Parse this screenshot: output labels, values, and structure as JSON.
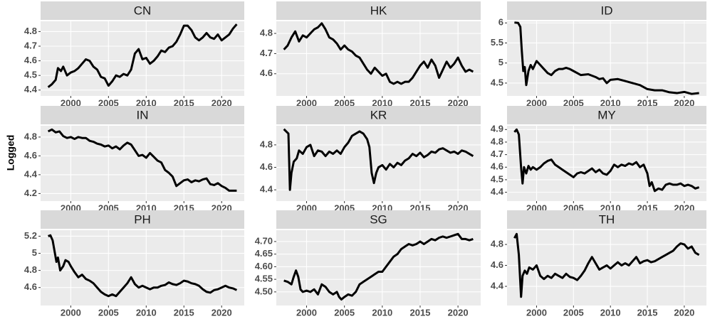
{
  "y_axis_label": "Logged",
  "chart_data": [
    {
      "type": "line",
      "title": "CN",
      "color": "#000000",
      "grid": true,
      "xlim": [
        1996,
        2023
      ],
      "ylim": [
        4.36,
        4.87
      ],
      "xticks": [
        2000,
        2005,
        2010,
        2015,
        2020
      ],
      "yticks": [
        4.4,
        4.5,
        4.6,
        4.7,
        4.8
      ],
      "x": [
        1997,
        1997.5,
        1998,
        1998.3,
        1998.7,
        1999,
        1999.5,
        2000,
        2000.5,
        2001,
        2001.5,
        2002,
        2002.5,
        2003,
        2003.5,
        2004,
        2004.5,
        2005,
        2005.5,
        2006,
        2006.5,
        2007,
        2007.5,
        2008,
        2008.5,
        2009,
        2009.5,
        2010,
        2010.5,
        2011,
        2011.5,
        2012,
        2012.5,
        2013,
        2013.5,
        2014,
        2014.5,
        2015,
        2015.5,
        2016,
        2016.5,
        2017,
        2017.5,
        2018,
        2018.5,
        2019,
        2019.5,
        2020,
        2020.5,
        2021,
        2021.5,
        2022
      ],
      "values": [
        4.42,
        4.44,
        4.47,
        4.55,
        4.53,
        4.56,
        4.5,
        4.52,
        4.53,
        4.55,
        4.58,
        4.61,
        4.6,
        4.56,
        4.54,
        4.49,
        4.48,
        4.43,
        4.46,
        4.5,
        4.49,
        4.51,
        4.5,
        4.54,
        4.65,
        4.68,
        4.61,
        4.62,
        4.58,
        4.6,
        4.63,
        4.67,
        4.66,
        4.69,
        4.7,
        4.73,
        4.78,
        4.84,
        4.84,
        4.81,
        4.76,
        4.74,
        4.76,
        4.79,
        4.76,
        4.75,
        4.78,
        4.74,
        4.76,
        4.78,
        4.82,
        4.85
      ]
    },
    {
      "type": "line",
      "title": "HK",
      "color": "#000000",
      "grid": true,
      "xlim": [
        1996,
        2023
      ],
      "ylim": [
        4.49,
        4.86
      ],
      "xticks": [
        2000,
        2005,
        2010,
        2015,
        2020
      ],
      "yticks": [
        4.6,
        4.7,
        4.8
      ],
      "x": [
        1997,
        1997.5,
        1998,
        1998.5,
        1999,
        1999.5,
        2000,
        2000.5,
        2001,
        2001.5,
        2002,
        2002.5,
        2003,
        2003.5,
        2004,
        2004.5,
        2005,
        2005.5,
        2006,
        2006.5,
        2007,
        2007.5,
        2008,
        2008.5,
        2009,
        2009.5,
        2010,
        2010.5,
        2011,
        2011.5,
        2012,
        2012.5,
        2013,
        2013.5,
        2014,
        2014.5,
        2015,
        2015.5,
        2016,
        2016.5,
        2017,
        2017.5,
        2018,
        2018.5,
        2019,
        2019.5,
        2020,
        2020.5,
        2021,
        2021.5,
        2022
      ],
      "values": [
        4.72,
        4.74,
        4.78,
        4.81,
        4.76,
        4.79,
        4.78,
        4.8,
        4.82,
        4.83,
        4.85,
        4.82,
        4.78,
        4.77,
        4.75,
        4.72,
        4.74,
        4.72,
        4.71,
        4.69,
        4.68,
        4.65,
        4.62,
        4.6,
        4.63,
        4.61,
        4.59,
        4.6,
        4.56,
        4.55,
        4.56,
        4.55,
        4.56,
        4.56,
        4.58,
        4.61,
        4.64,
        4.66,
        4.63,
        4.67,
        4.64,
        4.58,
        4.62,
        4.66,
        4.63,
        4.65,
        4.68,
        4.64,
        4.61,
        4.62,
        4.61
      ]
    },
    {
      "type": "line",
      "title": "ID",
      "color": "#000000",
      "grid": true,
      "xlim": [
        1996,
        2023
      ],
      "ylim": [
        4.18,
        6.04
      ],
      "xticks": [
        2000,
        2005,
        2010,
        2015,
        2020
      ],
      "yticks": [
        4.5,
        5.0,
        5.5,
        6.0
      ],
      "x": [
        1997,
        1997.5,
        1997.8,
        1998,
        1998.2,
        1998.4,
        1998.6,
        1998.9,
        1999.2,
        1999.5,
        2000,
        2000.5,
        2001,
        2001.5,
        2002,
        2002.5,
        2003,
        2003.5,
        2004,
        2004.5,
        2005,
        2005.5,
        2006,
        2007,
        2008,
        2008.5,
        2009,
        2009.5,
        2010,
        2011,
        2012,
        2013,
        2014,
        2015,
        2016,
        2017,
        2018,
        2019,
        2020,
        2021,
        2022
      ],
      "values": [
        6.01,
        6.0,
        5.9,
        5.3,
        4.8,
        4.9,
        4.45,
        4.8,
        4.95,
        4.85,
        5.05,
        4.95,
        4.85,
        4.75,
        4.7,
        4.8,
        4.85,
        4.85,
        4.88,
        4.85,
        4.8,
        4.75,
        4.7,
        4.72,
        4.65,
        4.6,
        4.62,
        4.5,
        4.58,
        4.6,
        4.55,
        4.5,
        4.45,
        4.35,
        4.32,
        4.32,
        4.27,
        4.25,
        4.28,
        4.23,
        4.25
      ]
    },
    {
      "type": "line",
      "title": "IN",
      "color": "#000000",
      "grid": true,
      "xlim": [
        1996,
        2023
      ],
      "ylim": [
        4.12,
        4.92
      ],
      "xticks": [
        2000,
        2005,
        2010,
        2015,
        2020
      ],
      "yticks": [
        4.2,
        4.4,
        4.6,
        4.8
      ],
      "x": [
        1997,
        1997.5,
        1998,
        1998.5,
        1999,
        1999.5,
        2000,
        2000.5,
        2001,
        2001.5,
        2002,
        2002.5,
        2003,
        2003.5,
        2004,
        2004.5,
        2005,
        2005.5,
        2006,
        2006.5,
        2007,
        2007.5,
        2008,
        2008.5,
        2009,
        2009.5,
        2010,
        2010.5,
        2011,
        2011.5,
        2012,
        2012.5,
        2013,
        2013.5,
        2014,
        2014.5,
        2015,
        2015.5,
        2016,
        2016.5,
        2017,
        2017.5,
        2018,
        2018.5,
        2019,
        2019.5,
        2020,
        2020.5,
        2021,
        2021.5,
        2022
      ],
      "values": [
        4.86,
        4.88,
        4.85,
        4.86,
        4.81,
        4.79,
        4.8,
        4.78,
        4.8,
        4.79,
        4.79,
        4.76,
        4.75,
        4.73,
        4.72,
        4.7,
        4.71,
        4.68,
        4.7,
        4.67,
        4.71,
        4.74,
        4.72,
        4.66,
        4.6,
        4.61,
        4.58,
        4.63,
        4.59,
        4.55,
        4.53,
        4.45,
        4.42,
        4.38,
        4.28,
        4.31,
        4.34,
        4.35,
        4.32,
        4.34,
        4.33,
        4.35,
        4.36,
        4.3,
        4.29,
        4.31,
        4.28,
        4.26,
        4.23,
        4.23,
        4.23
      ]
    },
    {
      "type": "line",
      "title": "KR",
      "color": "#000000",
      "grid": true,
      "xlim": [
        1996,
        2023
      ],
      "ylim": [
        4.3,
        4.97
      ],
      "xticks": [
        2000,
        2005,
        2010,
        2015,
        2020
      ],
      "yticks": [
        4.4,
        4.6,
        4.8
      ],
      "x": [
        1997,
        1997.3,
        1997.6,
        1997.8,
        1998,
        1998.3,
        1998.7,
        1999,
        1999.5,
        2000,
        2000.5,
        2001,
        2001.5,
        2002,
        2002.5,
        2003,
        2003.5,
        2004,
        2004.5,
        2005,
        2005.5,
        2006,
        2006.5,
        2007,
        2007.5,
        2008,
        2008.3,
        2008.6,
        2008.9,
        2009.2,
        2009.5,
        2010,
        2010.5,
        2011,
        2011.5,
        2012,
        2012.5,
        2013,
        2013.5,
        2014,
        2014.5,
        2015,
        2015.5,
        2016,
        2016.5,
        2017,
        2017.5,
        2018,
        2018.5,
        2019,
        2019.5,
        2020,
        2020.5,
        2021,
        2021.5,
        2022
      ],
      "values": [
        4.94,
        4.92,
        4.9,
        4.4,
        4.55,
        4.65,
        4.68,
        4.75,
        4.72,
        4.78,
        4.8,
        4.7,
        4.75,
        4.74,
        4.7,
        4.74,
        4.72,
        4.75,
        4.72,
        4.78,
        4.82,
        4.88,
        4.9,
        4.92,
        4.9,
        4.85,
        4.78,
        4.55,
        4.46,
        4.55,
        4.6,
        4.62,
        4.58,
        4.63,
        4.6,
        4.64,
        4.62,
        4.66,
        4.68,
        4.72,
        4.7,
        4.73,
        4.69,
        4.71,
        4.74,
        4.73,
        4.76,
        4.77,
        4.75,
        4.73,
        4.74,
        4.72,
        4.75,
        4.74,
        4.72,
        4.7
      ]
    },
    {
      "type": "line",
      "title": "MY",
      "color": "#000000",
      "grid": true,
      "xlim": [
        1996,
        2023
      ],
      "ylim": [
        4.33,
        4.93
      ],
      "xticks": [
        2000,
        2005,
        2010,
        2015,
        2020
      ],
      "yticks": [
        4.4,
        4.5,
        4.6,
        4.7,
        4.8,
        4.9
      ],
      "x": [
        1997,
        1997.3,
        1997.6,
        1997.9,
        1998.1,
        1998.3,
        1998.6,
        1998.9,
        1999.2,
        1999.5,
        2000,
        2000.5,
        2001,
        2001.5,
        2002,
        2002.5,
        2003,
        2003.5,
        2004,
        2004.5,
        2005,
        2005.5,
        2006,
        2006.5,
        2007,
        2007.5,
        2008,
        2008.5,
        2009,
        2009.5,
        2010,
        2010.5,
        2011,
        2011.5,
        2012,
        2012.5,
        2013,
        2013.5,
        2014,
        2014.5,
        2015,
        2015.3,
        2015.6,
        2016,
        2016.5,
        2017,
        2017.5,
        2018,
        2018.5,
        2019,
        2019.5,
        2020,
        2020.5,
        2021,
        2021.5,
        2022
      ],
      "values": [
        4.88,
        4.9,
        4.86,
        4.6,
        4.47,
        4.6,
        4.55,
        4.61,
        4.58,
        4.6,
        4.58,
        4.6,
        4.63,
        4.65,
        4.66,
        4.62,
        4.6,
        4.58,
        4.56,
        4.54,
        4.52,
        4.55,
        4.56,
        4.55,
        4.57,
        4.59,
        4.56,
        4.58,
        4.55,
        4.54,
        4.57,
        4.62,
        4.6,
        4.62,
        4.61,
        4.63,
        4.62,
        4.64,
        4.6,
        4.62,
        4.55,
        4.45,
        4.48,
        4.41,
        4.43,
        4.42,
        4.46,
        4.47,
        4.46,
        4.46,
        4.47,
        4.45,
        4.46,
        4.45,
        4.43,
        4.44
      ]
    },
    {
      "type": "line",
      "title": "PH",
      "color": "#000000",
      "grid": true,
      "xlim": [
        1996,
        2023
      ],
      "ylim": [
        4.39,
        5.27
      ],
      "xticks": [
        2000,
        2005,
        2010,
        2015,
        2020
      ],
      "yticks": [
        4.6,
        4.8,
        5.0,
        5.2
      ],
      "x": [
        1997,
        1997.3,
        1997.6,
        1997.9,
        1998.1,
        1998.3,
        1998.6,
        1999,
        1999.3,
        1999.7,
        2000,
        2000.5,
        2001,
        2001.5,
        2002,
        2002.5,
        2003,
        2003.5,
        2004,
        2004.5,
        2005,
        2005.5,
        2006,
        2006.5,
        2007,
        2007.5,
        2008,
        2008.5,
        2009,
        2009.5,
        2010,
        2010.5,
        2011,
        2011.5,
        2012,
        2012.5,
        2013,
        2013.5,
        2014,
        2014.5,
        2015,
        2015.5,
        2016,
        2016.5,
        2017,
        2017.5,
        2018,
        2018.5,
        2019,
        2019.5,
        2020,
        2020.5,
        2021,
        2021.5,
        2022
      ],
      "values": [
        5.2,
        5.21,
        5.15,
        5.0,
        4.9,
        4.95,
        4.8,
        4.85,
        4.92,
        4.9,
        4.85,
        4.78,
        4.72,
        4.75,
        4.7,
        4.68,
        4.65,
        4.6,
        4.55,
        4.52,
        4.5,
        4.52,
        4.5,
        4.55,
        4.6,
        4.65,
        4.72,
        4.64,
        4.6,
        4.62,
        4.6,
        4.58,
        4.6,
        4.6,
        4.62,
        4.63,
        4.66,
        4.64,
        4.63,
        4.65,
        4.68,
        4.67,
        4.65,
        4.64,
        4.62,
        4.58,
        4.55,
        4.54,
        4.57,
        4.58,
        4.6,
        4.62,
        4.6,
        4.59,
        4.57
      ]
    },
    {
      "type": "line",
      "title": "SG",
      "color": "#000000",
      "grid": true,
      "xlim": [
        1996,
        2023
      ],
      "ylim": [
        4.446,
        4.745
      ],
      "xticks": [
        2000,
        2005,
        2010,
        2015,
        2020
      ],
      "yticks": [
        {
          "value": 4.5,
          "label": "4.50"
        },
        4.55,
        {
          "value": 4.6,
          "label": "4.60"
        },
        4.65,
        {
          "value": 4.7,
          "label": "4.70"
        }
      ],
      "x": [
        1997,
        1997.5,
        1998,
        1998.3,
        1998.6,
        1998.9,
        1999.2,
        1999.5,
        2000,
        2000.5,
        2001,
        2001.5,
        2002,
        2002.5,
        2003,
        2003.5,
        2004,
        2004.3,
        2004.6,
        2005,
        2005.5,
        2006,
        2006.5,
        2007,
        2007.5,
        2008,
        2008.5,
        2009,
        2009.5,
        2010,
        2010.5,
        2011,
        2011.5,
        2012,
        2012.5,
        2013,
        2013.5,
        2014,
        2014.5,
        2015,
        2015.5,
        2016,
        2016.5,
        2017,
        2017.5,
        2018,
        2018.5,
        2019,
        2019.5,
        2020,
        2020.5,
        2021,
        2021.5,
        2022
      ],
      "values": [
        4.545,
        4.54,
        4.53,
        4.56,
        4.585,
        4.56,
        4.51,
        4.5,
        4.505,
        4.5,
        4.51,
        4.49,
        4.53,
        4.52,
        4.5,
        4.49,
        4.5,
        4.48,
        4.47,
        4.48,
        4.49,
        4.485,
        4.5,
        4.53,
        4.54,
        4.55,
        4.56,
        4.57,
        4.58,
        4.58,
        4.6,
        4.62,
        4.64,
        4.65,
        4.67,
        4.68,
        4.69,
        4.685,
        4.69,
        4.7,
        4.69,
        4.7,
        4.71,
        4.705,
        4.715,
        4.72,
        4.715,
        4.72,
        4.725,
        4.73,
        4.71,
        4.71,
        4.705,
        4.71
      ]
    },
    {
      "type": "line",
      "title": "TH",
      "color": "#000000",
      "grid": true,
      "xlim": [
        1996,
        2023
      ],
      "ylim": [
        4.217,
        4.936
      ],
      "xticks": [
        2000,
        2005,
        2010,
        2015,
        2020
      ],
      "yticks": [
        4.4,
        4.6,
        4.8
      ],
      "x": [
        1997,
        1997.3,
        1997.6,
        1997.9,
        1998.1,
        1998.4,
        1998.7,
        1999,
        1999.5,
        2000,
        2000.5,
        2001,
        2001.5,
        2002,
        2002.5,
        2003,
        2003.5,
        2004,
        2004.5,
        2005,
        2005.5,
        2006,
        2006.5,
        2007,
        2007.5,
        2008,
        2008.5,
        2009,
        2009.5,
        2010,
        2010.5,
        2011,
        2011.5,
        2012,
        2012.5,
        2013,
        2013.5,
        2014,
        2014.5,
        2015,
        2015.5,
        2016,
        2016.5,
        2017,
        2017.5,
        2018,
        2018.5,
        2019,
        2019.5,
        2020,
        2020.5,
        2021,
        2021.5,
        2022
      ],
      "values": [
        4.86,
        4.9,
        4.7,
        4.3,
        4.5,
        4.55,
        4.52,
        4.58,
        4.56,
        4.6,
        4.5,
        4.47,
        4.5,
        4.48,
        4.52,
        4.5,
        4.48,
        4.52,
        4.49,
        4.48,
        4.46,
        4.5,
        4.55,
        4.62,
        4.68,
        4.62,
        4.56,
        4.58,
        4.6,
        4.57,
        4.6,
        4.63,
        4.6,
        4.62,
        4.6,
        4.64,
        4.68,
        4.62,
        4.64,
        4.65,
        4.63,
        4.64,
        4.66,
        4.68,
        4.7,
        4.72,
        4.74,
        4.78,
        4.81,
        4.8,
        4.76,
        4.78,
        4.72,
        4.7
      ]
    }
  ]
}
